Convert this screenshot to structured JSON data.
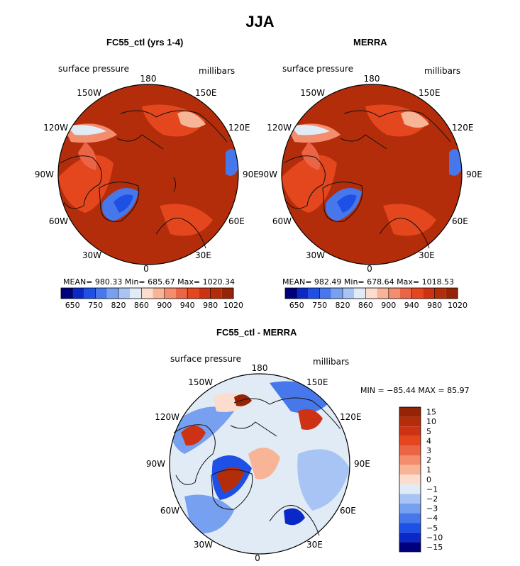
{
  "main_title": "JJA",
  "colors": {
    "seq_scale": [
      "#00007f",
      "#0a28c8",
      "#1e50e6",
      "#4678eb",
      "#78a0f0",
      "#a8c4f5",
      "#e1ebf5",
      "#fcdccc",
      "#f8b496",
      "#f48c6e",
      "#ec6446",
      "#e4461e",
      "#cd3214",
      "#b42d0a",
      "#962305"
    ],
    "diff_scale": [
      "#00007f",
      "#0a28c8",
      "#1e50e6",
      "#4678eb",
      "#78a0f0",
      "#a8c4f5",
      "#e1ebf5",
      "#fcdccc",
      "#f8b496",
      "#f48c6e",
      "#ec6446",
      "#e4461e",
      "#cd3214",
      "#b42d0a",
      "#962305"
    ],
    "land_outline": "#111111"
  },
  "panels": [
    {
      "title": "FC55_ctl (yrs 1-4)",
      "variable_label": "surface pressure",
      "units_label": "millibars",
      "lon_labels": {
        "top": "180",
        "bottom": "0",
        "left": "90W",
        "right": "90E",
        "ul1": "150W",
        "ul2": "120W",
        "ur1": "150E",
        "ur2": "120E",
        "ll1": "60W",
        "ll2": "30W",
        "lr1": "60E",
        "lr2": "30E"
      },
      "stats_text": "MEAN=  980.33    Min=  685.67    Max=  1020.34",
      "colorbar_ticks": [
        "650",
        "750",
        "820",
        "860",
        "900",
        "940",
        "980",
        "1020"
      ]
    },
    {
      "title": "MERRA",
      "variable_label": "surface pressure",
      "units_label": "millibars",
      "lon_labels": {
        "top": "180",
        "bottom": "0",
        "left": "90W",
        "right": "90E",
        "ul1": "150W",
        "ul2": "120W",
        "ur1": "150E",
        "ur2": "120E",
        "ll1": "60W",
        "ll2": "30W",
        "lr1": "60E",
        "lr2": "30E"
      },
      "stats_text": "MEAN=  982.49    Min=  678.64    Max=  1018.53",
      "colorbar_ticks": [
        "650",
        "750",
        "820",
        "860",
        "900",
        "940",
        "980",
        "1020"
      ]
    },
    {
      "title": "FC55_ctl - MERRA",
      "variable_label": "surface pressure",
      "units_label": "millibars",
      "lon_labels": {
        "top": "180",
        "bottom": "0",
        "left": "90W",
        "right": "90E",
        "ul1": "150W",
        "ul2": "120W",
        "ur1": "150E",
        "ur2": "120E",
        "ll1": "60W",
        "ll2": "30W",
        "lr1": "60E",
        "lr2": "30E"
      },
      "stats_text": "MIN =  −85.44  MAX =    85.97",
      "colorbar_ticks": [
        "15",
        "10",
        "5",
        "4",
        "3",
        "2",
        "1",
        "0",
        "−1",
        "−2",
        "−3",
        "−4",
        "−5",
        "−10",
        "−15"
      ]
    }
  ],
  "chart_data": [
    {
      "type": "heatmap",
      "title": "FC55_ctl (yrs 1-4)",
      "projection": "north polar stereographic",
      "variable": "surface pressure",
      "units": "millibars",
      "stats": {
        "mean": 980.33,
        "min": 685.67,
        "max": 1020.34
      },
      "colorbar_levels": [
        650,
        750,
        820,
        860,
        900,
        940,
        980,
        1020
      ]
    },
    {
      "type": "heatmap",
      "title": "MERRA",
      "projection": "north polar stereographic",
      "variable": "surface pressure",
      "units": "millibars",
      "stats": {
        "mean": 982.49,
        "min": 678.64,
        "max": 1018.53
      },
      "colorbar_levels": [
        650,
        750,
        820,
        860,
        900,
        940,
        980,
        1020
      ]
    },
    {
      "type": "heatmap",
      "title": "FC55_ctl - MERRA",
      "projection": "north polar stereographic",
      "variable": "surface pressure",
      "units": "millibars",
      "stats": {
        "min": -85.44,
        "max": 85.97
      },
      "colorbar_levels": [
        15,
        10,
        5,
        4,
        3,
        2,
        1,
        0,
        -1,
        -2,
        -3,
        -4,
        -5,
        -10,
        -15
      ]
    }
  ]
}
